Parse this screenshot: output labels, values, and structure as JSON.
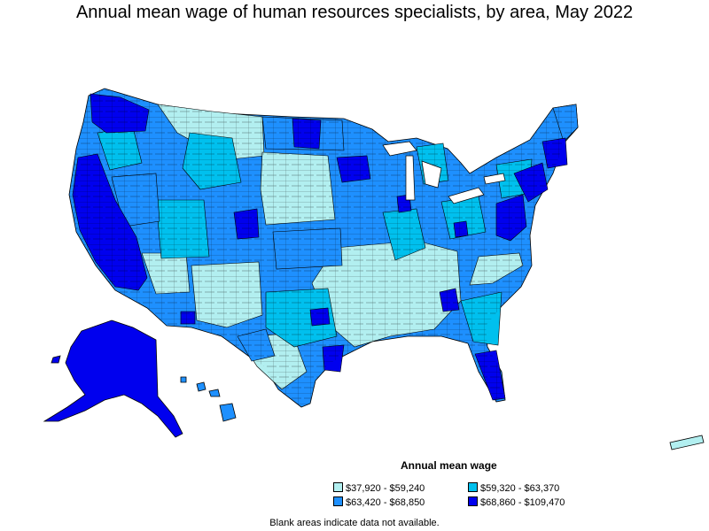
{
  "title": "Annual mean wage of human resources specialists, by area, May 2022",
  "legend": {
    "title": "Annual mean wage",
    "items": [
      {
        "label": "$37,920 - $59,240",
        "color": "#b2eff0"
      },
      {
        "label": "$59,320 - $63,370",
        "color": "#00c0ee"
      },
      {
        "label": "$63,420 - $68,850",
        "color": "#1e90ff"
      },
      {
        "label": "$68,860 - $109,470",
        "color": "#0000ee"
      }
    ]
  },
  "footnote": "Blank areas indicate data not available."
}
